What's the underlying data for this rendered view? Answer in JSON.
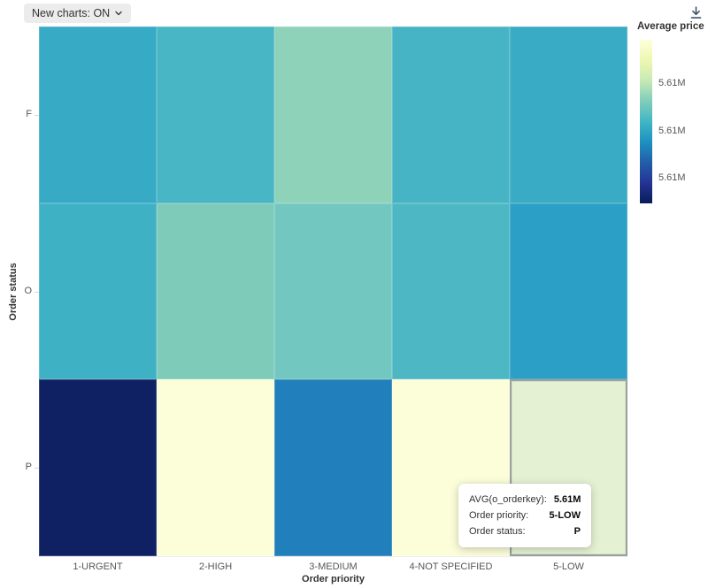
{
  "toolbar": {
    "new_charts_label": "New charts: ON"
  },
  "icons": {
    "dropdown": "chevron-down",
    "download": "arrow-down-to-line"
  },
  "colors": {
    "button_bg": "#ececec",
    "icon": "#44546a",
    "axis_text": "#565656",
    "axis_title_text": "#333333",
    "highlight_border": "#98a29c"
  },
  "chart_data": {
    "type": "heatmap",
    "metric": "AVG(o_orderkey)",
    "xlabel": "Order priority",
    "ylabel": "Order status",
    "x_categories": [
      "1-URGENT",
      "2-HIGH",
      "3-MEDIUM",
      "4-NOT SPECIFIED",
      "5-LOW"
    ],
    "y_categories": [
      "F",
      "O",
      "P"
    ],
    "legend": {
      "title": "Average price",
      "position": "right",
      "tick_labels": [
        "5.61M",
        "5.61M",
        "5.61M"
      ],
      "gradient_top_to_bottom": [
        "#ffffd9",
        "#edf8b1",
        "#c7e9b4",
        "#7fcdbb",
        "#41b6c4",
        "#1d91c0",
        "#225ea8",
        "#253494",
        "#081d58"
      ]
    },
    "cell_colors": [
      [
        "#37aac6",
        "#48b6c5",
        "#8ed2b9",
        "#46b4c5",
        "#39abc5"
      ],
      [
        "#3eb1c4",
        "#7fcbba",
        "#72c7c0",
        "#4db8c4",
        "#2b9fc6"
      ],
      [
        "#0f2163",
        "#fcfdd9",
        "#2180bb",
        "#fcfdd9",
        "#e4f2d3"
      ]
    ],
    "highlighted_cell": {
      "x": "5-LOW",
      "y": "P",
      "row": 2,
      "col": 4
    }
  },
  "tooltip": {
    "rows": [
      {
        "label": "AVG(o_orderkey):",
        "value": "5.61M"
      },
      {
        "label": "Order priority:",
        "value": "5-LOW"
      },
      {
        "label": "Order status:",
        "value": "P"
      }
    ]
  }
}
